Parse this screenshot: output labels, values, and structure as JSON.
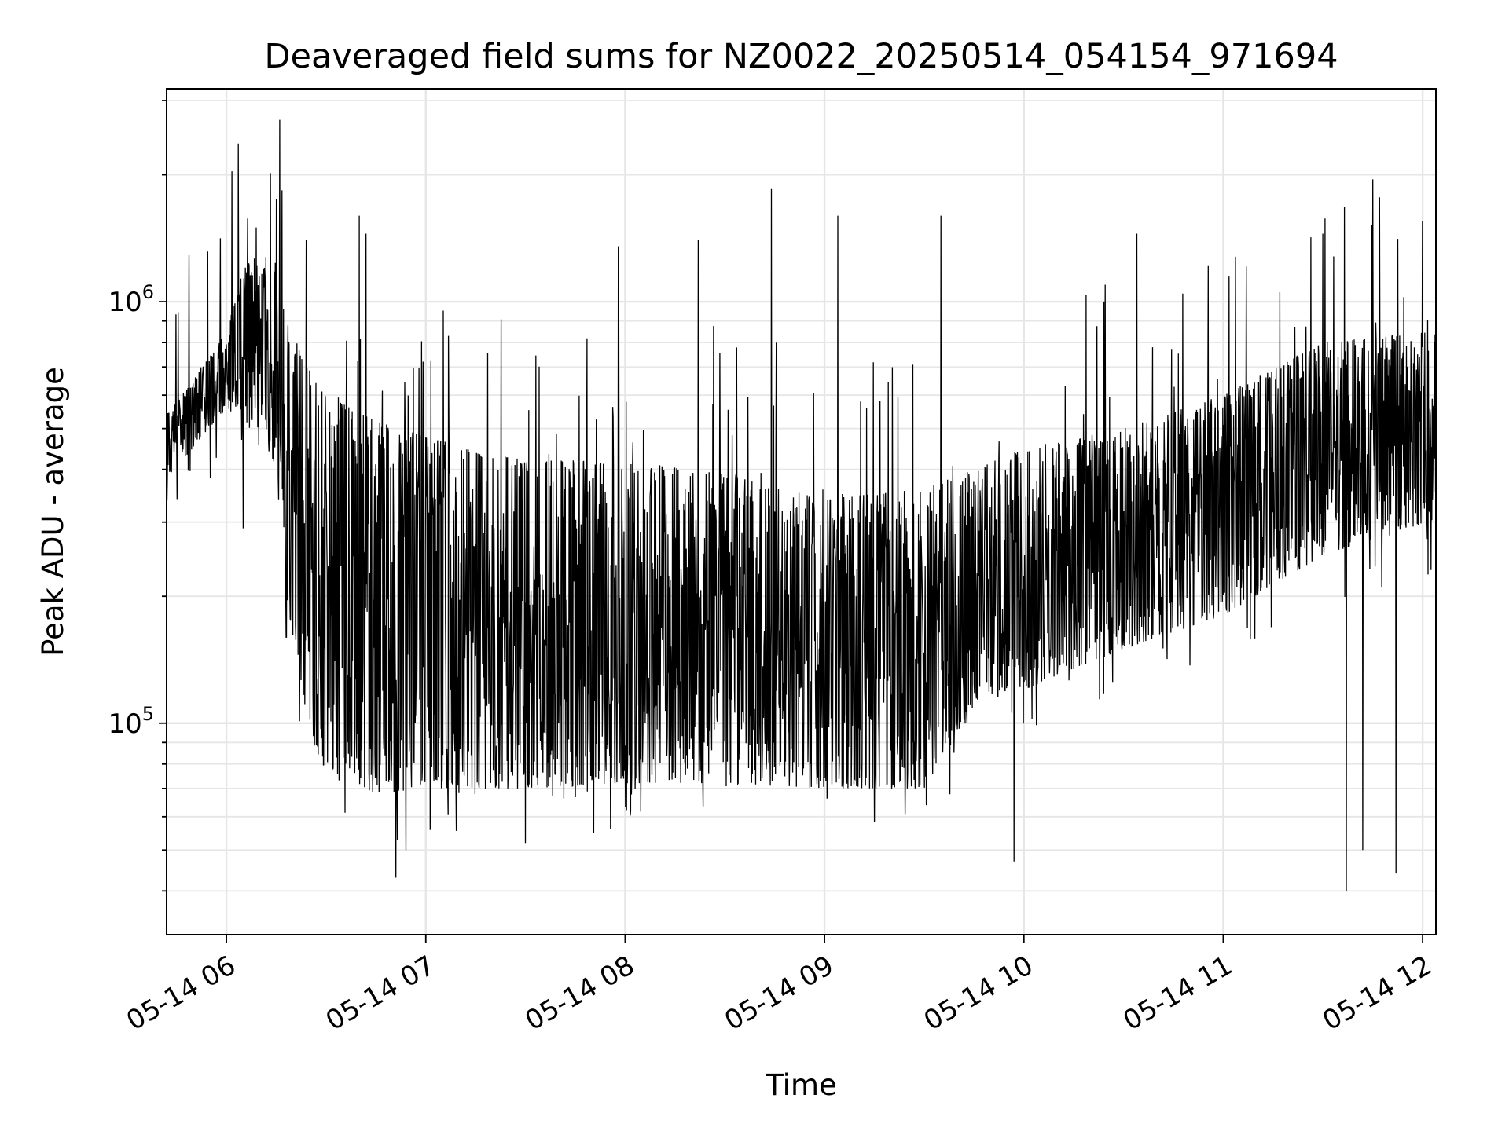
{
  "chart_data": {
    "type": "line",
    "title": "Deaveraged field sums for NZ0022_20250514_054154_971694",
    "xlabel": "Time",
    "ylabel": "Peak ADU - average",
    "yscale": "log",
    "grid": true,
    "xlim": [
      "05-14 05:42",
      "05-14 12:04"
    ],
    "ylim": [
      31500,
      3200000
    ],
    "x_ticks": [
      "05-14 06",
      "05-14 07",
      "05-14 08",
      "05-14 09",
      "05-14 10",
      "05-14 11",
      "05-14 12"
    ],
    "y_ticks": [
      {
        "value": 100000,
        "base": "10",
        "exp": "5"
      },
      {
        "value": 1000000,
        "base": "10",
        "exp": "6"
      }
    ],
    "series": [
      {
        "color": "#000000",
        "x_start": "05-14 05:42",
        "x_end": "05-14 12:04",
        "envelope": [
          {
            "time": "05-14 05:42",
            "low": 380000,
            "high": 540000
          },
          {
            "time": "05-14 05:50",
            "low": 450000,
            "high": 650000
          },
          {
            "time": "05-14 06:00",
            "low": 560000,
            "high": 850000
          },
          {
            "time": "05-14 06:05",
            "low": 520000,
            "high": 1200000
          },
          {
            "time": "05-14 06:10",
            "low": 500000,
            "high": 1300000
          },
          {
            "time": "05-14 06:15",
            "low": 400000,
            "high": 1250000
          },
          {
            "time": "05-14 06:18",
            "low": 200000,
            "high": 900000
          },
          {
            "time": "05-14 06:25",
            "low": 95000,
            "high": 700000
          },
          {
            "time": "05-14 06:30",
            "low": 75000,
            "high": 600000
          },
          {
            "time": "05-14 06:45",
            "low": 68000,
            "high": 520000
          },
          {
            "time": "05-14 07:00",
            "low": 70000,
            "high": 480000
          },
          {
            "time": "05-14 07:30",
            "low": 70000,
            "high": 420000
          },
          {
            "time": "05-14 08:00",
            "low": 72000,
            "high": 420000
          },
          {
            "time": "05-14 08:30",
            "low": 72000,
            "high": 390000
          },
          {
            "time": "05-14 09:00",
            "low": 70000,
            "high": 340000
          },
          {
            "time": "05-14 09:30",
            "low": 70000,
            "high": 360000
          },
          {
            "time": "05-14 09:45",
            "low": 110000,
            "high": 400000
          },
          {
            "time": "05-14 10:00",
            "low": 120000,
            "high": 450000
          },
          {
            "time": "05-14 10:30",
            "low": 150000,
            "high": 500000
          },
          {
            "time": "05-14 11:00",
            "low": 180000,
            "high": 600000
          },
          {
            "time": "05-14 11:30",
            "low": 250000,
            "high": 800000
          },
          {
            "time": "05-14 12:04",
            "low": 300000,
            "high": 850000
          }
        ],
        "spikes": [
          {
            "time": "05-14 06:16",
            "value": 2700000
          },
          {
            "time": "05-14 06:15",
            "value": 1750000
          },
          {
            "time": "05-14 06:05",
            "value": 1600000
          },
          {
            "time": "05-14 06:09",
            "value": 1500000
          },
          {
            "time": "05-14 06:24",
            "value": 1400000
          },
          {
            "time": "05-14 06:40",
            "value": 1600000
          },
          {
            "time": "05-14 06:42",
            "value": 1450000
          },
          {
            "time": "05-14 07:58",
            "value": 1350000
          },
          {
            "time": "05-14 08:22",
            "value": 1400000
          },
          {
            "time": "05-14 08:44",
            "value": 1850000
          },
          {
            "time": "05-14 09:04",
            "value": 1600000
          },
          {
            "time": "05-14 09:35",
            "value": 1600000
          },
          {
            "time": "05-14 10:34",
            "value": 1450000
          },
          {
            "time": "05-14 11:45",
            "value": 1950000
          },
          {
            "time": "05-14 12:00",
            "value": 1550000
          },
          {
            "time": "05-14 11:30",
            "value": 1450000
          },
          {
            "time": "05-14 06:51",
            "value": 43000
          },
          {
            "time": "05-14 06:54",
            "value": 50000
          },
          {
            "time": "05-14 07:30",
            "value": 52000
          },
          {
            "time": "05-14 09:57",
            "value": 47000
          },
          {
            "time": "05-14 11:37",
            "value": 40000
          },
          {
            "time": "05-14 11:52",
            "value": 44000
          },
          {
            "time": "05-14 11:42",
            "value": 50000
          },
          {
            "time": "05-14 06:05",
            "value": 290000
          },
          {
            "time": "05-14 06:18",
            "value": 160000
          }
        ]
      }
    ]
  }
}
